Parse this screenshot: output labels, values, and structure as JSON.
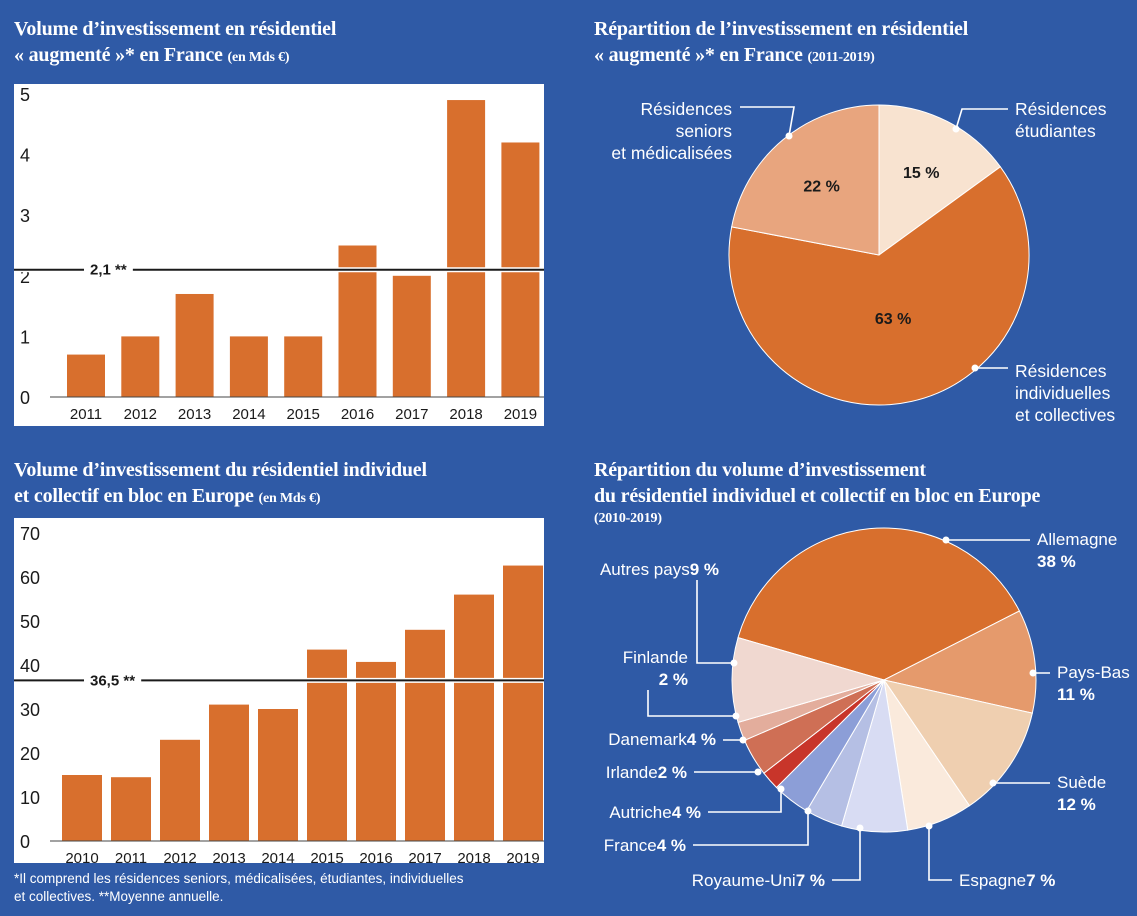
{
  "colors": {
    "background": "#2f5aa6",
    "plot_bg": "#ffffff",
    "bar": "#d86f2d",
    "text_dark": "#1a1a1a",
    "text_light": "#ffffff"
  },
  "chart_data": [
    {
      "id": "fr-volume",
      "type": "bar",
      "title_main": "Volume d’investissement en résidentiel",
      "title_main2": "« augmenté »* en France",
      "title_sub": "(en Mds €)",
      "categories": [
        "2011",
        "2012",
        "2013",
        "2014",
        "2015",
        "2016",
        "2017",
        "2018",
        "2019"
      ],
      "values": [
        0.7,
        1.0,
        1.7,
        1.0,
        1.0,
        2.5,
        2.0,
        4.9,
        4.2
      ],
      "ylim": [
        0,
        5
      ],
      "yticks": [
        "0",
        "1",
        "2",
        "3",
        "4",
        "5"
      ],
      "reference_line": {
        "value": 2.1,
        "label": "2,1 **"
      },
      "grid": false
    },
    {
      "id": "fr-split",
      "type": "pie",
      "title_main": "Répartition de l’investissement en résidentiel",
      "title_main2": "« augmenté »* en France",
      "title_sub": "(2011-2019)",
      "slices": [
        {
          "name": "Résidences étudiantes",
          "lines": [
            "Résidences",
            "étudiantes"
          ],
          "value": 15,
          "label": "15 %",
          "color": "#f8e3d0"
        },
        {
          "name": "Résidences individuelles et collectives",
          "lines": [
            "Résidences",
            "individuelles",
            "et collectives"
          ],
          "value": 63,
          "label": "63 %",
          "color": "#d86f2d"
        },
        {
          "name": "Résidences seniors et médicalisées",
          "lines": [
            "Résidences",
            "seniors",
            "et médicalisées"
          ],
          "value": 22,
          "label": "22 %",
          "color": "#e8a57e"
        }
      ]
    },
    {
      "id": "eu-volume",
      "type": "bar",
      "title_main": "Volume d’investissement du résidentiel individuel",
      "title_main2": "et collectif en bloc en Europe",
      "title_sub": "(en Mds €)",
      "categories": [
        "2010",
        "2011",
        "2012",
        "2013",
        "2014",
        "2015",
        "2016",
        "2017",
        "2018",
        "2019"
      ],
      "values": [
        15.0,
        14.5,
        23.0,
        31.0,
        30.0,
        43.5,
        40.7,
        48.0,
        56.0,
        62.6
      ],
      "ylim": [
        0,
        70
      ],
      "yticks": [
        "0",
        "10",
        "20",
        "30",
        "40",
        "50",
        "60",
        "70"
      ],
      "reference_line": {
        "value": 36.5,
        "label": "36,5 **"
      },
      "grid": false
    },
    {
      "id": "eu-split",
      "type": "pie",
      "title_main": "Répartition du volume d’investissement",
      "title_main2": "du résidentiel individuel et collectif en bloc en Europe",
      "title_sub": "(2010-2019)",
      "slices": [
        {
          "name": "Allemagne",
          "value": 38,
          "label": "38 %",
          "color": "#d86f2d"
        },
        {
          "name": "Pays-Bas",
          "value": 11,
          "label": "11 %",
          "color": "#e59a6c"
        },
        {
          "name": "Suède",
          "value": 12,
          "label": "12 %",
          "color": "#efcfb0"
        },
        {
          "name": "Espagne",
          "value": 7,
          "label": "7 %",
          "color": "#faeadc"
        },
        {
          "name": "Royaume-Uni",
          "value": 7,
          "label": "7 %",
          "color": "#d8dcf3"
        },
        {
          "name": "France",
          "value": 4,
          "label": "4 %",
          "color": "#b5bfe4"
        },
        {
          "name": "Autriche",
          "value": 4,
          "label": "4 %",
          "color": "#8c9ed7"
        },
        {
          "name": "Irlande",
          "value": 2,
          "label": "2 %",
          "color": "#c8352a"
        },
        {
          "name": "Danemark",
          "value": 4,
          "label": "4 %",
          "color": "#cf6f55"
        },
        {
          "name": "Finlande",
          "value": 2,
          "label": "2 %",
          "color": "#e3ad9c"
        },
        {
          "name": "Autres pays",
          "value": 9,
          "label": "9 %",
          "color": "#f0d8d0"
        }
      ]
    }
  ],
  "footnote": {
    "line1": "*Il comprend les résidences seniors, médicalisées, étudiantes, individuelles",
    "line2": "et collectives.  **Moyenne annuelle."
  }
}
